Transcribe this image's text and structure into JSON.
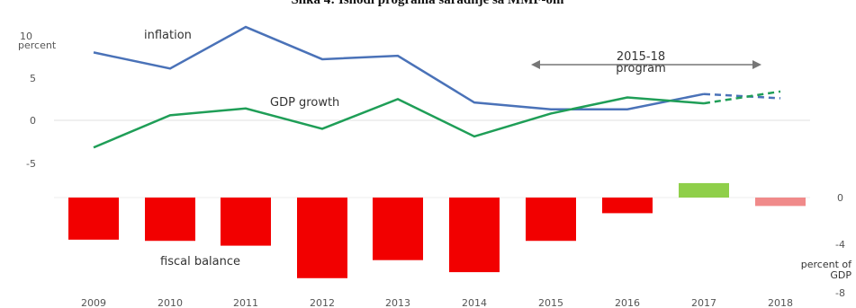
{
  "title": "Slika 4: Ishodi programa saradnje sa MMF-om",
  "chart_data": [
    {
      "type": "line",
      "ylabel": "percent",
      "ylim": [
        -5,
        10
      ],
      "yticks": [
        "10",
        "5",
        "0",
        "-5"
      ],
      "x": [
        "2009",
        "2010",
        "2011",
        "2012",
        "2013",
        "2014",
        "2015",
        "2016",
        "2017",
        "2018"
      ],
      "series": [
        {
          "name": "inflation",
          "color": "#4a72b8",
          "values": [
            8.0,
            6.1,
            11.0,
            7.2,
            7.6,
            2.1,
            1.3,
            1.3,
            3.1,
            2.6
          ],
          "projected_from": "2017"
        },
        {
          "name": "GDP growth",
          "color": "#1f9e57",
          "values": [
            -3.2,
            0.6,
            1.4,
            -1.0,
            2.5,
            -1.9,
            0.8,
            2.7,
            2.0,
            3.4
          ],
          "projected_from": "2017"
        }
      ],
      "annotations": {
        "program_label_1": "2015-18",
        "program_label_2": "program"
      }
    },
    {
      "type": "bar",
      "label": "fiscal balance",
      "ylabel_1": "percent of",
      "ylabel_2": "GDP",
      "ylim": [
        -8,
        1
      ],
      "yticks": [
        "0",
        "-4",
        "-8"
      ],
      "categories": [
        "2009",
        "2010",
        "2011",
        "2012",
        "2013",
        "2014",
        "2015",
        "2016",
        "2017",
        "2018"
      ],
      "values": [
        -3.5,
        -3.6,
        -4.0,
        -6.7,
        -5.2,
        -6.2,
        -3.6,
        -1.3,
        1.2,
        -0.7
      ],
      "colors": [
        "#f20000",
        "#f20000",
        "#f20000",
        "#f20000",
        "#f20000",
        "#f20000",
        "#f20000",
        "#f20000",
        "#8fcf4a",
        "#f08a8a"
      ]
    }
  ]
}
